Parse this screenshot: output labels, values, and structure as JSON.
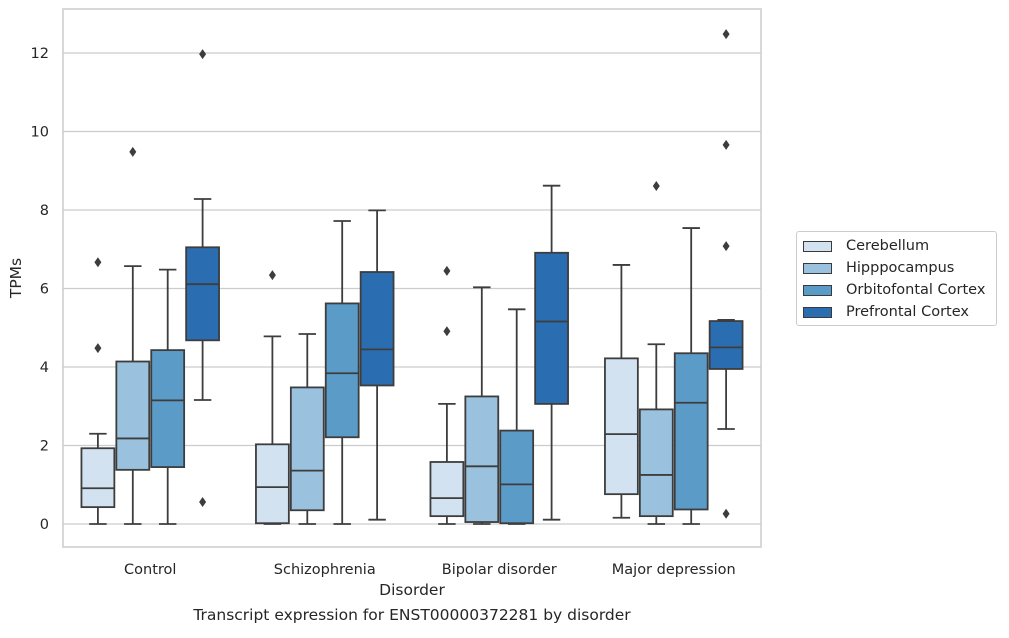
{
  "chart_data": {
    "type": "box",
    "xlabel": "Disorder",
    "ylabel": "TPMs",
    "caption": "Transcript expression for ENST00000372281 by disorder",
    "ylim": [
      -0.6,
      13.1
    ],
    "yticks": [
      0,
      2,
      4,
      6,
      8,
      10,
      12
    ],
    "grid": "horizontal",
    "legend_position": "right",
    "categories": [
      "Control",
      "Schizophrenia",
      "Bipolar disorder",
      "Major depression"
    ],
    "series": [
      {
        "name": "Cerebellum",
        "color": "#d2e2f1",
        "boxes": [
          {
            "q1": 0.43,
            "median": 0.91,
            "q3": 1.93,
            "whisker_low": 0.0,
            "whisker_high": 2.3,
            "outliers": [
              4.48,
              6.67
            ]
          },
          {
            "q1": 0.02,
            "median": 0.94,
            "q3": 2.03,
            "whisker_low": 0.0,
            "whisker_high": 4.78,
            "outliers": [
              6.34
            ]
          },
          {
            "q1": 0.2,
            "median": 0.66,
            "q3": 1.58,
            "whisker_low": 0.0,
            "whisker_high": 3.06,
            "outliers": [
              4.91,
              6.45
            ]
          },
          {
            "q1": 0.76,
            "median": 2.29,
            "q3": 4.22,
            "whisker_low": 0.16,
            "whisker_high": 6.6,
            "outliers": []
          }
        ]
      },
      {
        "name": "Hipppocampus",
        "color": "#9ac1dd",
        "boxes": [
          {
            "q1": 1.38,
            "median": 2.18,
            "q3": 4.14,
            "whisker_low": 0.0,
            "whisker_high": 6.57,
            "outliers": [
              9.48
            ]
          },
          {
            "q1": 0.35,
            "median": 1.36,
            "q3": 3.48,
            "whisker_low": 0.0,
            "whisker_high": 4.84,
            "outliers": []
          },
          {
            "q1": 0.05,
            "median": 1.47,
            "q3": 3.25,
            "whisker_low": 0.0,
            "whisker_high": 6.03,
            "outliers": []
          },
          {
            "q1": 0.2,
            "median": 1.25,
            "q3": 2.92,
            "whisker_low": 0.0,
            "whisker_high": 4.58,
            "outliers": [
              8.61
            ]
          }
        ]
      },
      {
        "name": "Orbitofontal Cortex",
        "color": "#5b9bc8",
        "boxes": [
          {
            "q1": 1.45,
            "median": 3.15,
            "q3": 4.43,
            "whisker_low": 0.0,
            "whisker_high": 6.48,
            "outliers": []
          },
          {
            "q1": 2.21,
            "median": 3.84,
            "q3": 5.62,
            "whisker_low": 0.0,
            "whisker_high": 7.72,
            "outliers": []
          },
          {
            "q1": 0.02,
            "median": 1.01,
            "q3": 2.38,
            "whisker_low": 0.0,
            "whisker_high": 5.47,
            "outliers": []
          },
          {
            "q1": 0.37,
            "median": 3.09,
            "q3": 4.35,
            "whisker_low": 0.0,
            "whisker_high": 7.54,
            "outliers": []
          }
        ]
      },
      {
        "name": "Prefrontal Cortex",
        "color": "#2a6eb1",
        "boxes": [
          {
            "q1": 4.68,
            "median": 6.11,
            "q3": 7.05,
            "whisker_low": 3.16,
            "whisker_high": 8.28,
            "outliers": [
              0.56,
              11.97
            ]
          },
          {
            "q1": 3.53,
            "median": 4.45,
            "q3": 6.42,
            "whisker_low": 0.11,
            "whisker_high": 7.99,
            "outliers": []
          },
          {
            "q1": 3.06,
            "median": 5.16,
            "q3": 6.91,
            "whisker_low": 0.11,
            "whisker_high": 8.62,
            "outliers": []
          },
          {
            "q1": 3.95,
            "median": 4.5,
            "q3": 5.17,
            "whisker_low": 2.42,
            "whisker_high": 5.2,
            "outliers": [
              0.26,
              7.08,
              9.66,
              12.48
            ]
          }
        ]
      }
    ]
  }
}
